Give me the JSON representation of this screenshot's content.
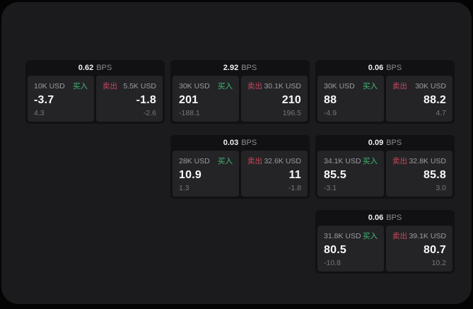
{
  "labels": {
    "bps_unit": "BPS",
    "buy": "买入",
    "sell": "卖出"
  },
  "colors": {
    "buy_accent": "#3dbb73",
    "sell_accent": "#c8475d",
    "panel_bg": "#1b1b1d",
    "card_bg": "#111113",
    "pane_bg": "#242427"
  },
  "cards": [
    {
      "bps": "0.62",
      "buy": {
        "amount": "10K USD",
        "value": "-3.7",
        "delta": "4.3"
      },
      "sell": {
        "amount": "5.5K USD",
        "value": "-1.8",
        "delta": "-2.6"
      }
    },
    {
      "bps": "2.92",
      "buy": {
        "amount": "30K USD",
        "value": "201",
        "delta": "-188.1"
      },
      "sell": {
        "amount": "30.1K USD",
        "value": "210",
        "delta": "196.5"
      }
    },
    {
      "bps": "0.06",
      "buy": {
        "amount": "30K USD",
        "value": "88",
        "delta": "-4.9"
      },
      "sell": {
        "amount": "30K USD",
        "value": "88.2",
        "delta": "4.7"
      }
    },
    {
      "bps": "0.03",
      "buy": {
        "amount": "28K USD",
        "value": "10.9",
        "delta": "1.3"
      },
      "sell": {
        "amount": "32.6K USD",
        "value": "11",
        "delta": "-1.8"
      }
    },
    {
      "bps": "0.09",
      "buy": {
        "amount": "34.1K USD",
        "value": "85.5",
        "delta": "-3.1"
      },
      "sell": {
        "amount": "32.8K USD",
        "value": "85.8",
        "delta": "3.0"
      }
    },
    {
      "bps": "0.06",
      "buy": {
        "amount": "31.8K USD",
        "value": "80.5",
        "delta": "-10.8"
      },
      "sell": {
        "amount": "39.1K USD",
        "value": "80.7",
        "delta": "10.2"
      }
    }
  ]
}
